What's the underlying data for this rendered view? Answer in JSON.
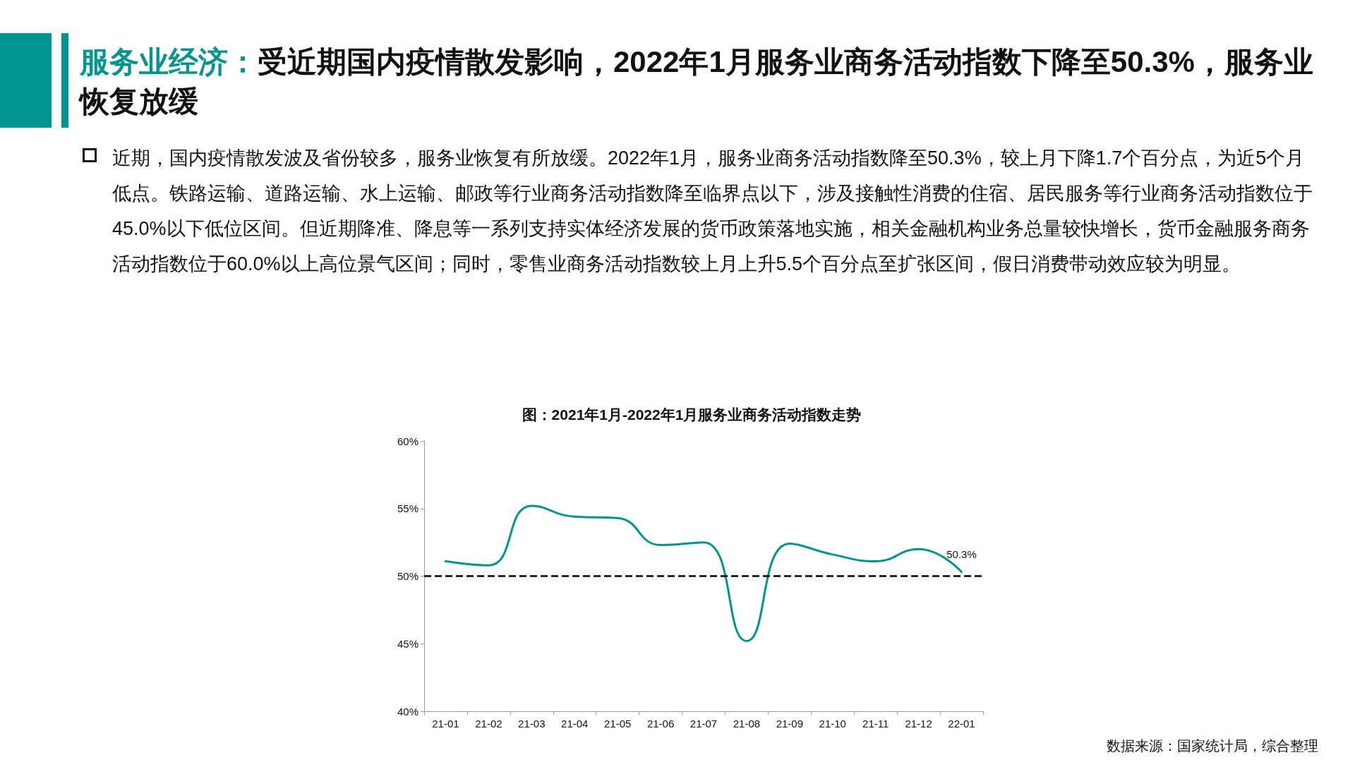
{
  "chart_data": {
    "type": "line",
    "title": "服务业经济：受近期国内疫情散发影响，2022年1月服务业商务活动指数下降至50.3%，服务业恢复放缓",
    "subtitle": "近期，国内疫情散发波及省份较多，服务业恢复有所放缓。2022年1月，服务业商务活动指数降至50.3%，较上月下降1.7个百分点，为近5个月低点。铁路运输、道路运输、水上运输、邮政等行业商务活动指数降至临界点以下，涉及接触性消费的住宿、居民服务等行业商务活动指数位于45.0%以下低位区间。但近期降准、降息等一系列支持实体经济发展的货币政策落地实施，相关金融机构业务总量较快增长，货币金融服务商务活动指数位于60.0%以上高位景气区间；同时，零售业商务活动指数较上月上升5.5个百分点至扩张区间，假日消费带动效应较为明显。",
    "annotations": [
      "图：2021年1月-2022年1月服务业商务活动指数走势",
      "数据来源：国家统计局，综合整理"
    ],
    "categories": [
      "21-01",
      "21-02",
      "21-03",
      "21-04",
      "21-05",
      "21-06",
      "21-07",
      "21-08",
      "21-09",
      "21-10",
      "21-11",
      "21-12",
      "22-01"
    ],
    "series": [
      {
        "color": "#00968f",
        "values": [
          51.1,
          50.8,
          55.2,
          54.4,
          54.3,
          52.3,
          52.5,
          45.2,
          52.4,
          51.6,
          51.1,
          52.0,
          50.3
        ],
        "value_labels": [
          null,
          null,
          null,
          null,
          null,
          null,
          null,
          null,
          null,
          null,
          null,
          null,
          "50.3%"
        ]
      }
    ],
    "ylim": [
      40,
      60
    ],
    "yticks": [
      {
        "value": 40,
        "label": "40%"
      },
      {
        "value": 45,
        "label": "45%"
      },
      {
        "value": 50,
        "label": "50%"
      },
      {
        "value": 55,
        "label": "55%"
      },
      {
        "value": 60,
        "label": "60%"
      }
    ],
    "ref_lines": [
      {
        "axis": "y",
        "value": 50,
        "color": "#000000",
        "line_style": "dashed"
      }
    ],
    "marker": "none",
    "line_style": "solid"
  }
}
